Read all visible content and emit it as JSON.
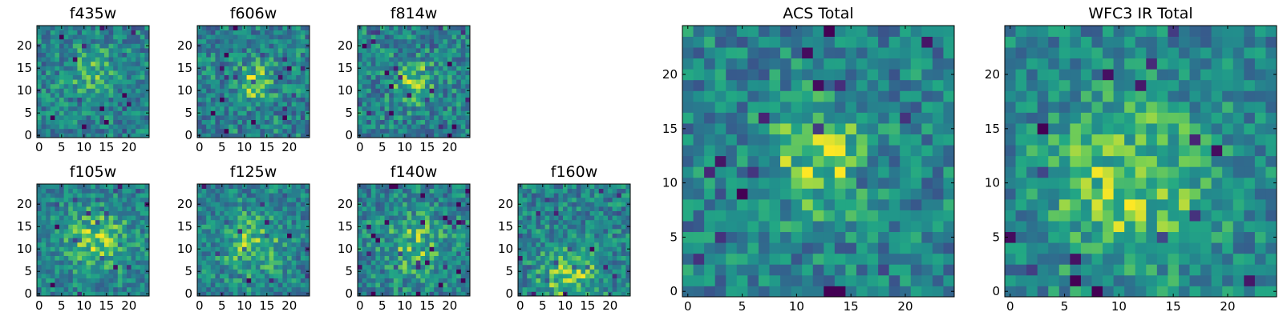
{
  "colormap": "viridis",
  "colors": {
    "low": "#440154",
    "mid": "#21918c",
    "high": "#fde725"
  },
  "chart_data": [
    {
      "type": "heatmap",
      "title": "f435w",
      "size": 25,
      "seed": 11,
      "noise": 0.42,
      "center": [
        12,
        14
      ],
      "amp": 0.18,
      "sigma": 4.0,
      "xticks": [
        0,
        5,
        10,
        15,
        20
      ],
      "yticks": [
        0,
        5,
        10,
        15,
        20
      ],
      "xlim": [
        0,
        24
      ],
      "ylim": [
        0,
        24
      ]
    },
    {
      "type": "heatmap",
      "title": "f606w",
      "size": 25,
      "seed": 23,
      "noise": 0.45,
      "center": [
        12,
        12
      ],
      "amp": 0.28,
      "sigma": 3.0,
      "xticks": [
        0,
        5,
        10,
        15,
        20
      ],
      "yticks": [
        0,
        5,
        10,
        15,
        20
      ],
      "xlim": [
        0,
        24
      ],
      "ylim": [
        0,
        24
      ]
    },
    {
      "type": "heatmap",
      "title": "f814w",
      "size": 25,
      "seed": 37,
      "noise": 0.45,
      "center": [
        12,
        12
      ],
      "amp": 0.3,
      "sigma": 3.0,
      "xticks": [
        0,
        5,
        10,
        15,
        20
      ],
      "yticks": [
        0,
        5,
        10,
        15,
        20
      ],
      "xlim": [
        0,
        24
      ],
      "ylim": [
        0,
        24
      ]
    },
    {
      "type": "heatmap",
      "title": "f105w",
      "size": 25,
      "seed": 41,
      "noise": 0.38,
      "center": [
        13,
        12
      ],
      "amp": 0.28,
      "sigma": 5.0,
      "xticks": [
        0,
        5,
        10,
        15,
        20
      ],
      "yticks": [
        0,
        5,
        10,
        15,
        20
      ],
      "xlim": [
        0,
        24
      ],
      "ylim": [
        0,
        24
      ]
    },
    {
      "type": "heatmap",
      "title": "f125w",
      "size": 25,
      "seed": 53,
      "noise": 0.4,
      "center": [
        12,
        11
      ],
      "amp": 0.24,
      "sigma": 5.0,
      "xticks": [
        0,
        5,
        10,
        15,
        20
      ],
      "yticks": [
        0,
        5,
        10,
        15,
        20
      ],
      "xlim": [
        0,
        24
      ],
      "ylim": [
        0,
        24
      ]
    },
    {
      "type": "heatmap",
      "title": "f140w",
      "size": 25,
      "seed": 67,
      "noise": 0.42,
      "center": [
        12,
        11
      ],
      "amp": 0.22,
      "sigma": 5.0,
      "xticks": [
        0,
        5,
        10,
        15,
        20
      ],
      "yticks": [
        0,
        5,
        10,
        15,
        20
      ],
      "xlim": [
        0,
        24
      ],
      "ylim": [
        0,
        24
      ]
    },
    {
      "type": "heatmap",
      "title": "f160w",
      "size": 25,
      "seed": 79,
      "noise": 0.42,
      "center": [
        11,
        4
      ],
      "amp": 0.26,
      "sigma": 5.0,
      "xticks": [
        0,
        5,
        10,
        15,
        20
      ],
      "yticks": [
        0,
        5,
        10,
        15,
        20
      ],
      "xlim": [
        0,
        24
      ],
      "ylim": [
        0,
        24
      ]
    },
    {
      "type": "heatmap",
      "title": "ACS Total",
      "size": 25,
      "seed": 97,
      "noise": 0.42,
      "center": [
        12,
        12
      ],
      "amp": 0.32,
      "sigma": 3.2,
      "xticks": [
        0,
        5,
        10,
        15,
        20
      ],
      "yticks": [
        0,
        5,
        10,
        15,
        20
      ],
      "xlim": [
        0,
        24
      ],
      "ylim": [
        0,
        24
      ]
    },
    {
      "type": "heatmap",
      "title": "WFC3 IR Total",
      "size": 25,
      "seed": 113,
      "noise": 0.38,
      "center": [
        11,
        10
      ],
      "amp": 0.3,
      "sigma": 5.5,
      "xticks": [
        0,
        5,
        10,
        15,
        20
      ],
      "yticks": [
        0,
        5,
        10,
        15,
        20
      ],
      "xlim": [
        0,
        24
      ],
      "ylim": [
        0,
        24
      ]
    }
  ]
}
